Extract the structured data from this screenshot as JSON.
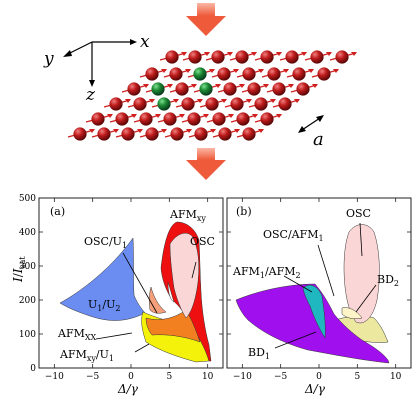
{
  "top": {
    "axes": {
      "x": "x",
      "y": "y",
      "z": "z"
    },
    "lattice_label": "a",
    "lattice_colors": {
      "atom": "#b01818",
      "defect": "#157a2c",
      "arrow": "#d02020",
      "flow_arrow": "#f06a50"
    }
  },
  "chart_data": [
    {
      "type": "region_map",
      "panel": "(a)",
      "ylabel_main": "I",
      "ylabel_sub": "I",
      "ylabel_sub_index": "sat",
      "xlabel": "Δ/γ",
      "xlim": [
        -12,
        12
      ],
      "ylim": [
        0,
        500
      ],
      "xticks": [
        -10,
        -5,
        0,
        5,
        10
      ],
      "yticks": [
        0,
        100,
        200,
        300,
        400,
        500
      ],
      "regions": [
        {
          "name": "U1/U2",
          "color": "#6b8cf0"
        },
        {
          "name": "AFMxy",
          "color": "#ee1010"
        },
        {
          "name": "OSC",
          "color": "#fbd6d6"
        },
        {
          "name": "AFMxx",
          "color": "#f38020"
        },
        {
          "name": "AFMxy/U1",
          "color": "#f4f20a"
        },
        {
          "name": "OSC/U1",
          "color": "#f5a07a"
        }
      ],
      "labels": {
        "osc_u1": {
          "main": "OSC/U",
          "sub": "1"
        },
        "afmxy": {
          "main": "AFM",
          "sub": "xy"
        },
        "osc": "OSC",
        "u1u2": {
          "a": "U",
          "a_sub": "1",
          "mid": "/U",
          "b_sub": "2"
        },
        "afmxx": {
          "main": "AFM",
          "sub": "XX"
        },
        "afmxy_u1": {
          "main": "AFM",
          "sub": "xy",
          "tail": "/U",
          "tail_sub": "1"
        }
      }
    },
    {
      "type": "region_map",
      "panel": "(b)",
      "xlabel": "Δ/γ",
      "xlim": [
        -12,
        12
      ],
      "ylim": [
        0,
        500
      ],
      "xticks": [
        -10,
        -5,
        0,
        5,
        10
      ],
      "yticks": [
        0,
        100,
        200,
        300,
        400,
        500
      ],
      "regions": [
        {
          "name": "AFM1",
          "color": "#a010ef"
        },
        {
          "name": "AFM1/AFM2",
          "color": "#20b8c0"
        },
        {
          "name": "OSC",
          "color": "#fbd6d6"
        },
        {
          "name": "BD1",
          "color": "#ece8a0"
        },
        {
          "name": "BD2",
          "color": "#fff4c8"
        }
      ],
      "labels": {
        "osc": "OSC",
        "osc_afm1": {
          "main": "OSC/AFM",
          "sub": "1"
        },
        "afm1_afm2": {
          "a": "AFM",
          "a_sub": "1",
          "mid": "/AFM",
          "b_sub": "2"
        },
        "bd2": {
          "main": "BD",
          "sub": "2"
        },
        "bd1": {
          "main": "BD",
          "sub": "1"
        }
      }
    }
  ]
}
